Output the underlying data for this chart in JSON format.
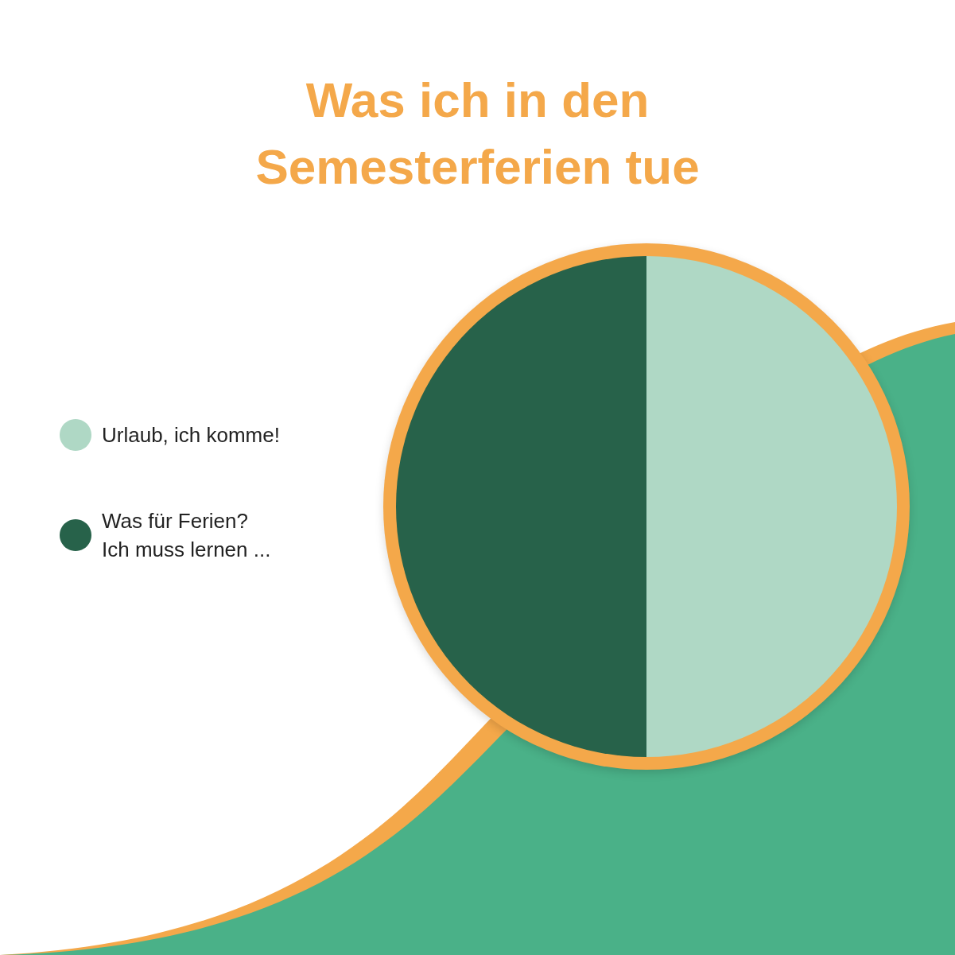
{
  "chart_data": {
    "type": "pie",
    "title": "Was ich in den\nSemesterferien tue",
    "categories": [
      "Urlaub, ich komme!",
      "Was für Ferien?\nIch muss lernen ..."
    ],
    "values": [
      50,
      50
    ],
    "colors": [
      "#afd8c5",
      "#27624a"
    ],
    "legend": "left"
  }
}
